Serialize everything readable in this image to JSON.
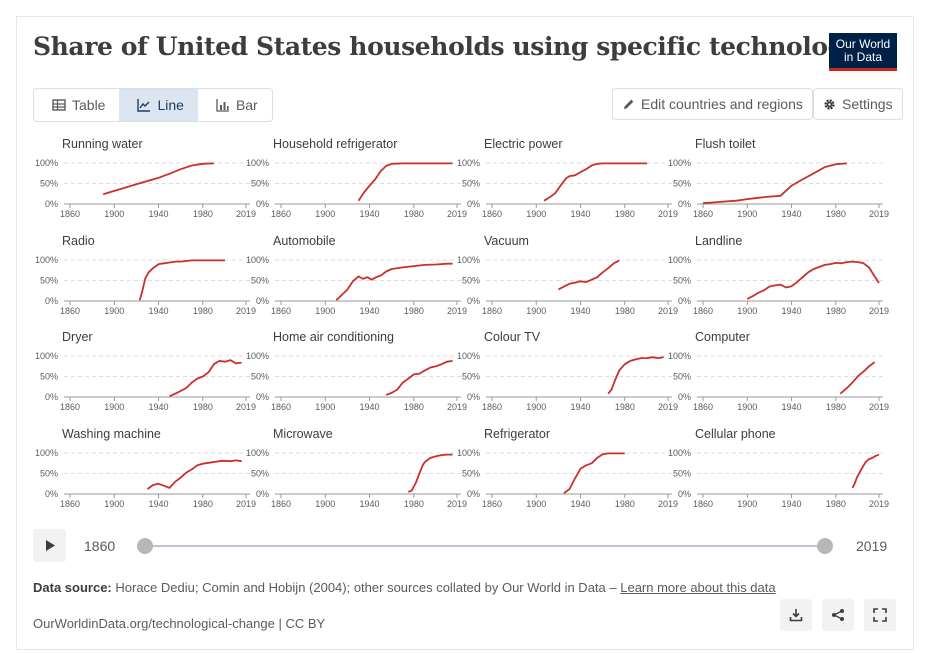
{
  "title": "Share of United States households using specific technologies",
  "logo": {
    "line1": "Our World",
    "line2": "in Data"
  },
  "tabs": [
    {
      "label": "Table"
    },
    {
      "label": "Line"
    },
    {
      "label": "Bar"
    }
  ],
  "buttons": {
    "edit": "Edit countries and regions",
    "settings": "Settings"
  },
  "timeline": {
    "start": "1860",
    "end": "2019"
  },
  "footer": {
    "source_label": "Data source:",
    "source_text": "Horace Dediu; Comin and Hobijn (2004); other sources collated by Our World in Data –",
    "learn_more": "Learn more about this data",
    "url": "OurWorldinData.org/technological-change | CC BY"
  },
  "colors": {
    "line": "#c9302c",
    "grid": "#dddddd",
    "brand": "#002147",
    "brand_accent": "#ce261e"
  },
  "chart_data": {
    "type": "line",
    "unit": "%",
    "x_ticks": [
      "1860",
      "1900",
      "1940",
      "1980",
      "2019"
    ],
    "y_ticks": [
      "0%",
      "50%",
      "100%"
    ],
    "xlim": [
      1860,
      2019
    ],
    "ylim": [
      0,
      100
    ],
    "panels": [
      {
        "name": "Running water",
        "x": [
          1890,
          1900,
          1910,
          1920,
          1930,
          1940,
          1950,
          1960,
          1970,
          1980,
          1990
        ],
        "y": [
          24,
          32,
          40,
          48,
          56,
          64,
          74,
          85,
          94,
          98,
          99
        ]
      },
      {
        "name": "Household refrigerator",
        "x": [
          1930,
          1935,
          1940,
          1945,
          1950,
          1955,
          1960,
          1970,
          1980,
          1990,
          2000,
          2010,
          2015
        ],
        "y": [
          8,
          28,
          45,
          60,
          80,
          93,
          98,
          99,
          99,
          99,
          99,
          99,
          99
        ]
      },
      {
        "name": "Electric power",
        "x": [
          1907,
          1912,
          1917,
          1922,
          1927,
          1930,
          1935,
          1940,
          1945,
          1950,
          1955,
          1960,
          1970,
          1980,
          2000
        ],
        "y": [
          8,
          16,
          26,
          45,
          63,
          68,
          70,
          78,
          85,
          94,
          98,
          99,
          99,
          99,
          99
        ]
      },
      {
        "name": "Flush toilet",
        "x": [
          1860,
          1870,
          1880,
          1890,
          1900,
          1910,
          1920,
          1930,
          1940,
          1950,
          1960,
          1970,
          1980,
          1990
        ],
        "y": [
          2,
          4,
          6,
          8,
          12,
          15,
          18,
          20,
          45,
          60,
          75,
          90,
          97,
          99
        ]
      },
      {
        "name": "Radio",
        "x": [
          1923,
          1925,
          1928,
          1931,
          1935,
          1940,
          1945,
          1950,
          1955,
          1960,
          1970,
          1980,
          2000
        ],
        "y": [
          2,
          20,
          55,
          70,
          80,
          90,
          92,
          94,
          96,
          96,
          99,
          99,
          99
        ]
      },
      {
        "name": "Automobile",
        "x": [
          1910,
          1915,
          1920,
          1925,
          1930,
          1934,
          1938,
          1942,
          1946,
          1950,
          1955,
          1960,
          1970,
          1980,
          1990,
          2000,
          2010,
          2015
        ],
        "y": [
          2,
          15,
          28,
          48,
          60,
          54,
          58,
          52,
          58,
          62,
          72,
          78,
          82,
          85,
          88,
          89,
          91,
          91
        ]
      },
      {
        "name": "Vacuum",
        "x": [
          1920,
          1925,
          1930,
          1935,
          1940,
          1945,
          1950,
          1955,
          1960,
          1965,
          1970,
          1975
        ],
        "y": [
          28,
          35,
          42,
          45,
          48,
          46,
          52,
          58,
          70,
          80,
          92,
          99
        ]
      },
      {
        "name": "Landline",
        "x": [
          1900,
          1905,
          1910,
          1915,
          1920,
          1925,
          1930,
          1935,
          1940,
          1945,
          1950,
          1955,
          1960,
          1965,
          1970,
          1975,
          1980,
          1985,
          1990,
          1995,
          2000,
          2005,
          2010,
          2015,
          2019
        ],
        "y": [
          5,
          12,
          20,
          26,
          35,
          38,
          40,
          33,
          36,
          46,
          58,
          70,
          78,
          83,
          88,
          90,
          93,
          92,
          95,
          96,
          95,
          92,
          82,
          60,
          44
        ]
      },
      {
        "name": "Dryer",
        "x": [
          1950,
          1955,
          1960,
          1965,
          1970,
          1975,
          1980,
          1985,
          1990,
          1995,
          2000,
          2005,
          2010,
          2015
        ],
        "y": [
          2,
          8,
          15,
          22,
          35,
          45,
          50,
          60,
          80,
          88,
          86,
          90,
          82,
          84
        ]
      },
      {
        "name": "Home air conditioning",
        "x": [
          1955,
          1960,
          1965,
          1970,
          1975,
          1980,
          1985,
          1990,
          1995,
          2000,
          2005,
          2010,
          2015
        ],
        "y": [
          5,
          10,
          18,
          35,
          45,
          55,
          57,
          65,
          72,
          75,
          80,
          86,
          88
        ]
      },
      {
        "name": "Colour TV",
        "x": [
          1965,
          1968,
          1971,
          1975,
          1980,
          1985,
          1990,
          1995,
          2000,
          2005,
          2010,
          2015
        ],
        "y": [
          8,
          18,
          40,
          65,
          80,
          88,
          92,
          95,
          95,
          97,
          95,
          97
        ]
      },
      {
        "name": "Computer",
        "x": [
          1984,
          1990,
          1995,
          2000,
          2005,
          2010,
          2015
        ],
        "y": [
          8,
          22,
          35,
          51,
          62,
          75,
          85
        ]
      },
      {
        "name": "Washing machine",
        "x": [
          1930,
          1935,
          1940,
          1945,
          1950,
          1955,
          1960,
          1965,
          1970,
          1975,
          1980,
          1985,
          1990,
          1995,
          2000,
          2005,
          2010,
          2015
        ],
        "y": [
          12,
          22,
          25,
          20,
          15,
          30,
          40,
          52,
          60,
          70,
          74,
          76,
          78,
          80,
          81,
          80,
          82,
          80
        ]
      },
      {
        "name": "Microwave",
        "x": [
          1975,
          1978,
          1980,
          1982,
          1985,
          1988,
          1990,
          1995,
          2000,
          2005,
          2010,
          2015
        ],
        "y": [
          5,
          8,
          18,
          28,
          50,
          70,
          78,
          88,
          92,
          95,
          96,
          96
        ]
      },
      {
        "name": "Refrigerator",
        "x": [
          1925,
          1930,
          1935,
          1940,
          1945,
          1950,
          1955,
          1960,
          1965,
          1970,
          1975,
          1980
        ],
        "y": [
          2,
          12,
          38,
          62,
          70,
          75,
          88,
          97,
          99,
          99,
          99,
          99
        ]
      },
      {
        "name": "Cellular phone",
        "x": [
          1995,
          1997,
          1999,
          2001,
          2004,
          2007,
          2010,
          2013,
          2016,
          2019
        ],
        "y": [
          15,
          25,
          40,
          50,
          65,
          78,
          85,
          88,
          93,
          96
        ]
      }
    ]
  }
}
